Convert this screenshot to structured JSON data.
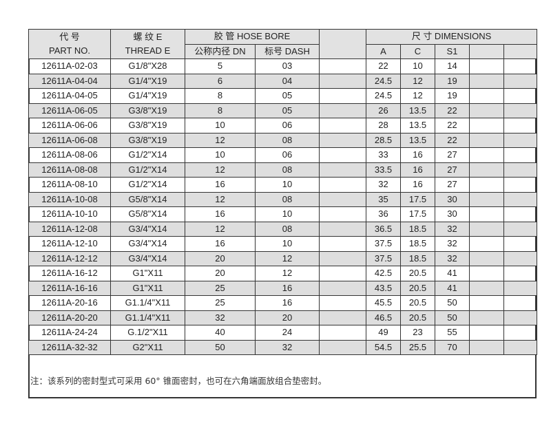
{
  "header": {
    "part_no_cn": "代 号",
    "part_no_en": "PART NO.",
    "thread_cn": "螺 纹 E",
    "thread_en": "THREAD  E",
    "hose_bore": "胶  管  HOSE BORE",
    "dn": "公称内径 DN",
    "dash": "标号 DASH",
    "dimensions": "尺  寸 DIMENSIONS",
    "a": "A",
    "c": "C",
    "s1": "S1"
  },
  "rows": [
    [
      "12611A-02-03",
      "G1/8\"X28",
      "5",
      "03",
      "22",
      "10",
      "14"
    ],
    [
      "12611A-04-04",
      "G1/4\"X19",
      "6",
      "04",
      "24.5",
      "12",
      "19"
    ],
    [
      "12611A-04-05",
      "G1/4\"X19",
      "8",
      "05",
      "24.5",
      "12",
      "19"
    ],
    [
      "12611A-06-05",
      "G3/8\"X19",
      "8",
      "05",
      "26",
      "13.5",
      "22"
    ],
    [
      "12611A-06-06",
      "G3/8\"X19",
      "10",
      "06",
      "28",
      "13.5",
      "22"
    ],
    [
      "12611A-06-08",
      "G3/8\"X19",
      "12",
      "08",
      "28.5",
      "13.5",
      "22"
    ],
    [
      "12611A-08-06",
      "G1/2\"X14",
      "10",
      "06",
      "33",
      "16",
      "27"
    ],
    [
      "12611A-08-08",
      "G1/2\"X14",
      "12",
      "08",
      "33.5",
      "16",
      "27"
    ],
    [
      "12611A-08-10",
      "G1/2\"X14",
      "16",
      "10",
      "32",
      "16",
      "27"
    ],
    [
      "12611A-10-08",
      "G5/8\"X14",
      "12",
      "08",
      "35",
      "17.5",
      "30"
    ],
    [
      "12611A-10-10",
      "G5/8\"X14",
      "16",
      "10",
      "36",
      "17.5",
      "30"
    ],
    [
      "12611A-12-08",
      "G3/4\"X14",
      "12",
      "08",
      "36.5",
      "18.5",
      "32"
    ],
    [
      "12611A-12-10",
      "G3/4\"X14",
      "16",
      "10",
      "37.5",
      "18.5",
      "32"
    ],
    [
      "12611A-12-12",
      "G3/4\"X14",
      "20",
      "12",
      "37.5",
      "18.5",
      "32"
    ],
    [
      "12611A-16-12",
      "G1\"X11",
      "20",
      "12",
      "42.5",
      "20.5",
      "41"
    ],
    [
      "12611A-16-16",
      "G1\"X11",
      "25",
      "16",
      "43.5",
      "20.5",
      "41"
    ],
    [
      "12611A-20-16",
      "G1.1/4\"X11",
      "25",
      "16",
      "45.5",
      "20.5",
      "50"
    ],
    [
      "12611A-20-20",
      "G1.1/4\"X11",
      "32",
      "20",
      "46.5",
      "20.5",
      "50"
    ],
    [
      "12611A-24-24",
      "G.1/2\"X11",
      "40",
      "24",
      "49",
      "23",
      "55"
    ],
    [
      "12611A-32-32",
      "G2\"X11",
      "50",
      "32",
      "54.5",
      "25.5",
      "70"
    ]
  ],
  "note": "注：该系列的密封型式可采用 60° 锥面密封，也可在六角端面放组合垫密封。"
}
